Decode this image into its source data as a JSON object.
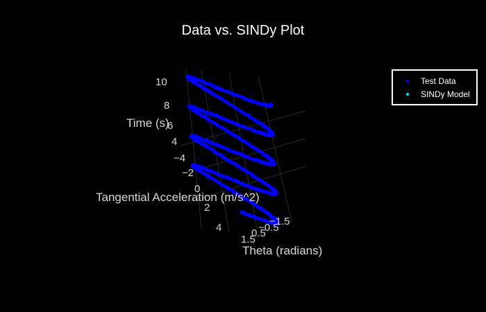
{
  "chart_data": {
    "type": "scatter3d",
    "title": "Data vs. SINDy Plot",
    "axes": {
      "x": {
        "label": "Theta (radians)",
        "ticks": [
          "1.5",
          "0.5",
          "−0.5",
          "−1.5"
        ],
        "range": [
          -1.6,
          1.6
        ]
      },
      "y": {
        "label": "Tangential Acceleration (m/s^2)",
        "ticks": [
          "−4",
          "−2",
          "0",
          "2",
          "4"
        ],
        "range": [
          -5,
          5
        ]
      },
      "z": {
        "label": "Time (s)",
        "ticks": [
          "4",
          "6",
          "8",
          "10"
        ],
        "range": [
          0,
          10
        ]
      }
    },
    "legend": {
      "placement": "top-right"
    },
    "series": [
      {
        "name": "Test Data",
        "color": "#0000ff",
        "marker": "circle"
      },
      {
        "name": "SINDy Model",
        "color": "#00e5ff",
        "marker": "circle"
      }
    ]
  }
}
